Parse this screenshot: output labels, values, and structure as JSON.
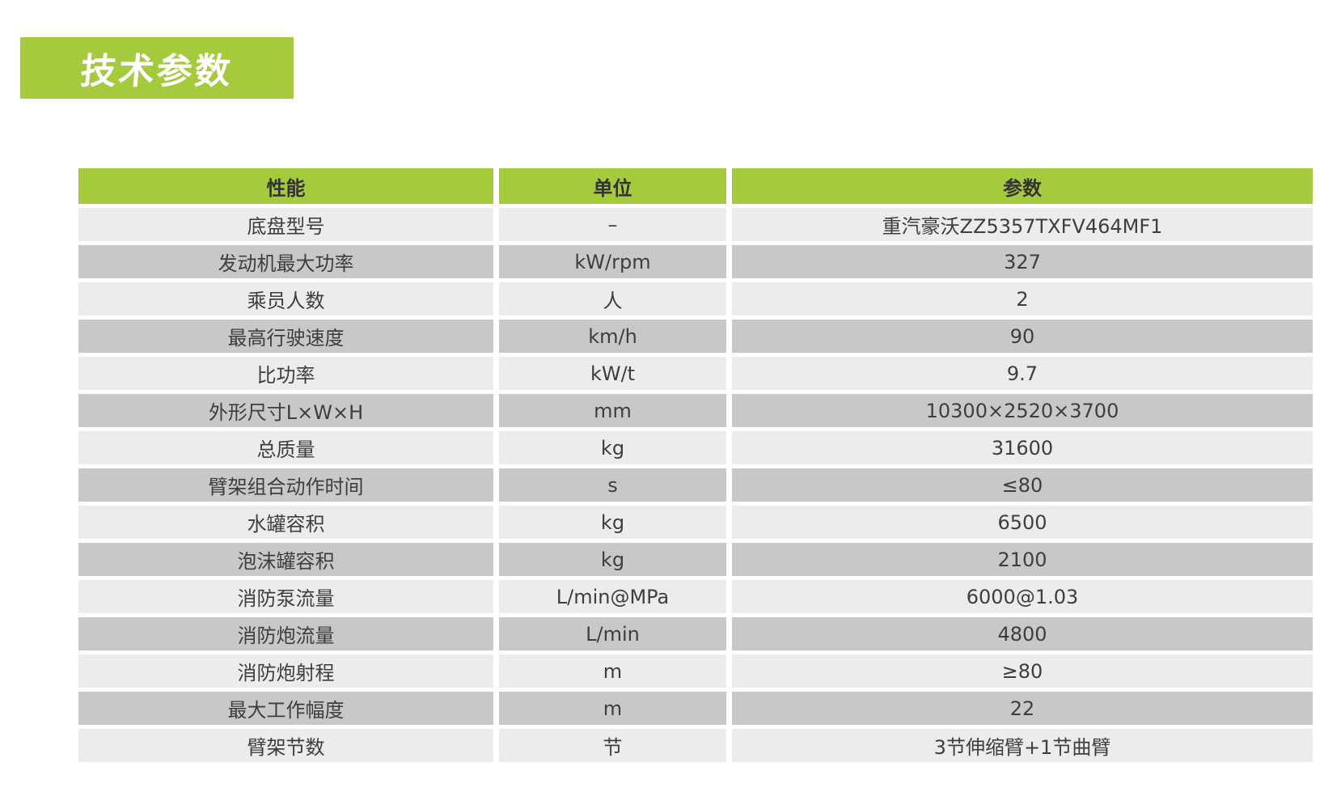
{
  "page": {
    "section_title": "技术参数"
  },
  "colors": {
    "accent_green": "#a5ca3e",
    "row_light": "#ececec",
    "row_dark": "#c8c8c8",
    "text_dark": "#3e3e3e",
    "banner_text": "#ffffff"
  },
  "table": {
    "columns": [
      "性能",
      "单位",
      "参数"
    ],
    "rows": [
      {
        "name": "底盘型号",
        "unit": "–",
        "value": "重汽豪沃ZZ5357TXFV464MF1"
      },
      {
        "name": "发动机最大功率",
        "unit": "kW/rpm",
        "value": "327"
      },
      {
        "name": "乘员人数",
        "unit": "人",
        "value": "2"
      },
      {
        "name": "最高行驶速度",
        "unit": "km/h",
        "value": "90"
      },
      {
        "name": "比功率",
        "unit": "kW/t",
        "value": "9.7"
      },
      {
        "name": "外形尺寸L×W×H",
        "unit": "mm",
        "value": "10300×2520×3700"
      },
      {
        "name": "总质量",
        "unit": "kg",
        "value": "31600"
      },
      {
        "name": "臂架组合动作时间",
        "unit": "s",
        "value": "≤80"
      },
      {
        "name": "水罐容积",
        "unit": "kg",
        "value": "6500"
      },
      {
        "name": "泡沫罐容积",
        "unit": "kg",
        "value": "2100"
      },
      {
        "name": "消防泵流量",
        "unit": "L/min@MPa",
        "value": "6000@1.03"
      },
      {
        "name": "消防炮流量",
        "unit": "L/min",
        "value": "4800"
      },
      {
        "name": "消防炮射程",
        "unit": "m",
        "value": "≥80"
      },
      {
        "name": "最大工作幅度",
        "unit": "m",
        "value": "22"
      },
      {
        "name": "臂架节数",
        "unit": "节",
        "value": "3节伸缩臂+1节曲臂"
      }
    ]
  }
}
